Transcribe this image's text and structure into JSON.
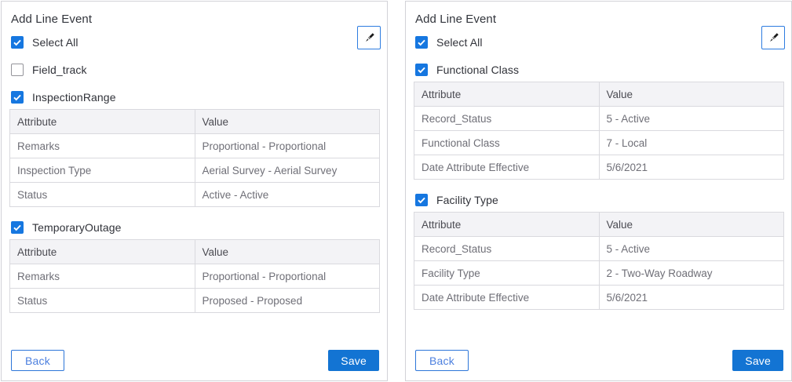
{
  "colors": {
    "checkbox_blue": "#1677e0",
    "save_button_blue": "#1374d3",
    "back_button_border_blue": "#2d76d9",
    "back_button_text_blue": "#4d80df"
  },
  "panels": [
    {
      "title": "Add Line Event",
      "select_all_label": "Select All",
      "select_all_checked": true,
      "tool_icon": "pen-icon",
      "groups": [
        {
          "label": "Field_track",
          "checked": false
        },
        {
          "label": "InspectionRange",
          "checked": true,
          "table": {
            "headers": [
              "Attribute",
              "Value"
            ],
            "rows": [
              [
                "Remarks",
                "Proportional - Proportional"
              ],
              [
                "Inspection Type",
                "Aerial Survey - Aerial Survey"
              ],
              [
                "Status",
                "Active - Active"
              ]
            ]
          }
        },
        {
          "label": "TemporaryOutage",
          "checked": true,
          "table": {
            "headers": [
              "Attribute",
              "Value"
            ],
            "rows": [
              [
                "Remarks",
                "Proportional - Proportional"
              ],
              [
                "Status",
                "Proposed - Proposed"
              ]
            ]
          }
        }
      ],
      "footer": {
        "back_label": "Back",
        "save_label": "Save"
      }
    },
    {
      "title": "Add Line Event",
      "select_all_label": "Select All",
      "select_all_checked": true,
      "tool_icon": "pen-icon",
      "groups": [
        {
          "label": "Functional Class",
          "checked": true,
          "table": {
            "headers": [
              "Attribute",
              "Value"
            ],
            "rows": [
              [
                "Record_Status",
                "5 - Active"
              ],
              [
                "Functional Class",
                "7 - Local"
              ],
              [
                "Date Attribute Effective",
                "5/6/2021"
              ]
            ]
          }
        },
        {
          "label": "Facility Type",
          "checked": true,
          "table": {
            "headers": [
              "Attribute",
              "Value"
            ],
            "rows": [
              [
                "Record_Status",
                "5 - Active"
              ],
              [
                "Facility Type",
                "2 - Two-Way Roadway"
              ],
              [
                "Date Attribute Effective",
                "5/6/2021"
              ]
            ]
          }
        }
      ],
      "footer": {
        "back_label": "Back",
        "save_label": "Save"
      }
    }
  ]
}
